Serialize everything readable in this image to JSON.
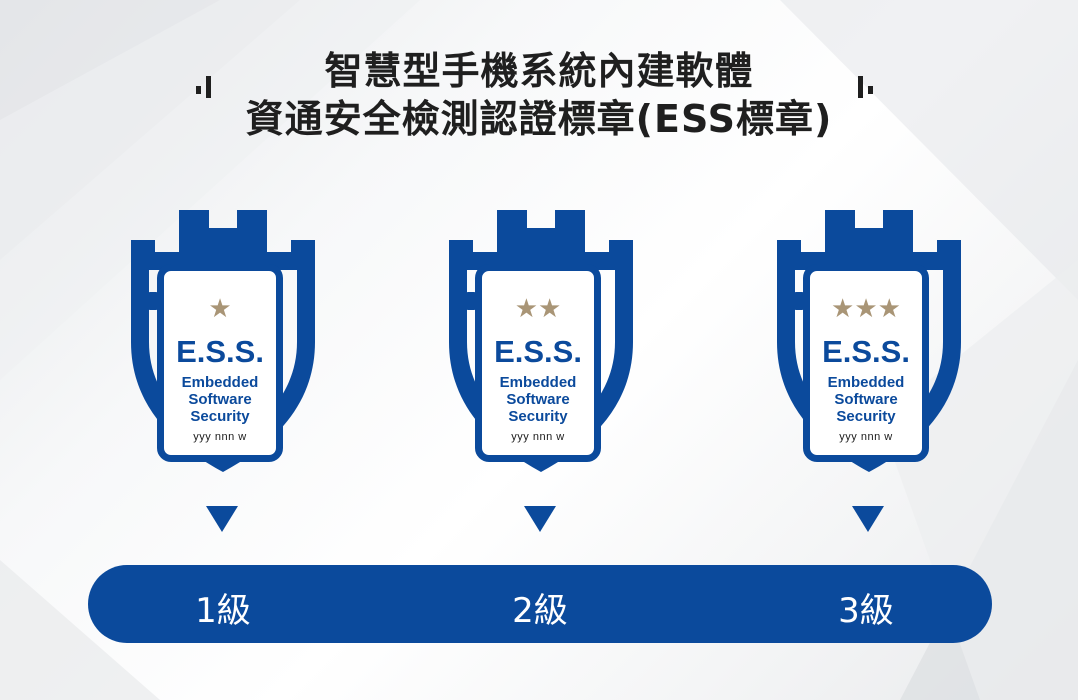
{
  "header": {
    "title_line1": "智慧型手機系統內建軟體",
    "title_line2": "資通安全檢測認證標章(ESS標章)"
  },
  "colors": {
    "brand_blue": "#0b4a9c",
    "star_gold": "#a99576",
    "title_text": "#1f1f1f"
  },
  "badges": [
    {
      "stars": "★",
      "mark": "E.S.S.",
      "line1": "Embedded",
      "line2": "Software",
      "line3": "Security",
      "code": "yyy  nnn  w",
      "level": "1級"
    },
    {
      "stars": "★★",
      "mark": "E.S.S.",
      "line1": "Embedded",
      "line2": "Software",
      "line3": "Security",
      "code": "yyy  nnn  w",
      "level": "2級"
    },
    {
      "stars": "★★★",
      "mark": "E.S.S.",
      "line1": "Embedded",
      "line2": "Software",
      "line3": "Security",
      "code": "yyy  nnn  w",
      "level": "3級"
    }
  ],
  "icons": {
    "left_signal": "signal-bars-icon",
    "right_signal": "signal-bars-icon",
    "badge_frame": "castle-shield-icon",
    "arrow": "triangle-down-icon"
  }
}
